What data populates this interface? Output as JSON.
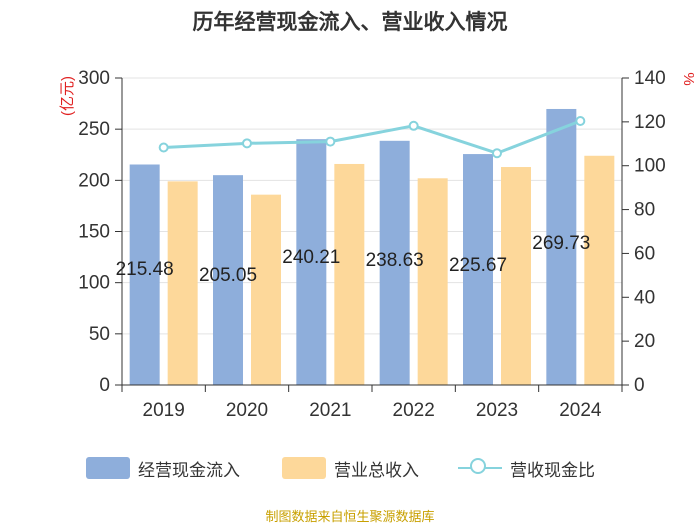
{
  "title": "历年经营现金流入、营业收入情况",
  "source": "制图数据来自恒生聚源数据库",
  "colors": {
    "cash_inflow": "#8eaedb",
    "revenue": "#fdd89a",
    "ratio": "#86d3dd",
    "axis_unit": "#e02020",
    "source": "#c8a000"
  },
  "chart_data": {
    "type": "bar",
    "title": "历年经营现金流入、营业收入情况",
    "categories": [
      "2019",
      "2020",
      "2021",
      "2022",
      "2023",
      "2024"
    ],
    "y_left": {
      "label": "(亿元)",
      "min": 0,
      "max": 300,
      "ticks": [
        0,
        50,
        100,
        150,
        200,
        250,
        300
      ]
    },
    "y_right": {
      "label": "%",
      "min": 0,
      "max": 140,
      "ticks": [
        0,
        20,
        40,
        60,
        80,
        100,
        120,
        140
      ]
    },
    "grid": true,
    "legend_position": "bottom",
    "series": [
      {
        "name": "经营现金流入",
        "type": "bar",
        "axis": "left",
        "values": [
          215.48,
          205.05,
          240.21,
          238.63,
          225.67,
          269.73
        ],
        "labels": [
          "215.48",
          "205.05",
          "240.21",
          "238.63",
          "225.67",
          "269.73"
        ]
      },
      {
        "name": "营业总收入",
        "type": "bar",
        "axis": "left",
        "values": [
          199,
          186,
          216,
          202,
          213,
          224
        ]
      },
      {
        "name": "营收现金比",
        "type": "line",
        "axis": "right",
        "values": [
          108.3,
          110.2,
          111.0,
          118.2,
          105.7,
          120.4
        ]
      }
    ]
  }
}
